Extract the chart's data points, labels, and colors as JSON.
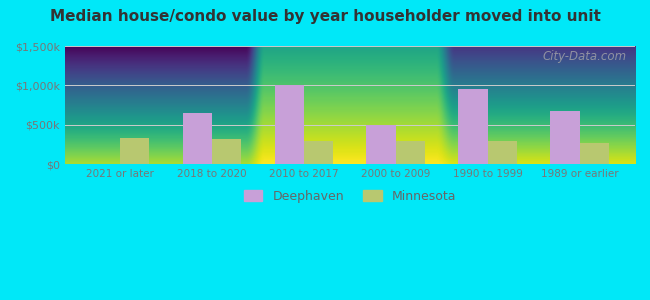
{
  "title": "Median house/condo value by year householder moved into unit",
  "categories": [
    "2021 or later",
    "2018 to 2020",
    "2010 to 2017",
    "2000 to 2009",
    "1990 to 1999",
    "1989 or earlier"
  ],
  "deephaven_values": [
    0,
    650000,
    1000000,
    500000,
    950000,
    680000
  ],
  "minnesota_values": [
    330000,
    320000,
    300000,
    295000,
    300000,
    265000
  ],
  "deephaven_color": "#c8a0d8",
  "minnesota_color": "#b8c870",
  "background_outer": "#00e8f8",
  "background_top": "#c8e8d0",
  "background_bottom": "#f8fffc",
  "ylim": [
    0,
    1500000
  ],
  "yticks": [
    0,
    500000,
    1000000,
    1500000
  ],
  "ytick_labels": [
    "$0",
    "$500k",
    "$1,000k",
    "$1,500k"
  ],
  "bar_width": 0.32,
  "legend_labels": [
    "Deephaven",
    "Minnesota"
  ],
  "watermark": "City-Data.com"
}
